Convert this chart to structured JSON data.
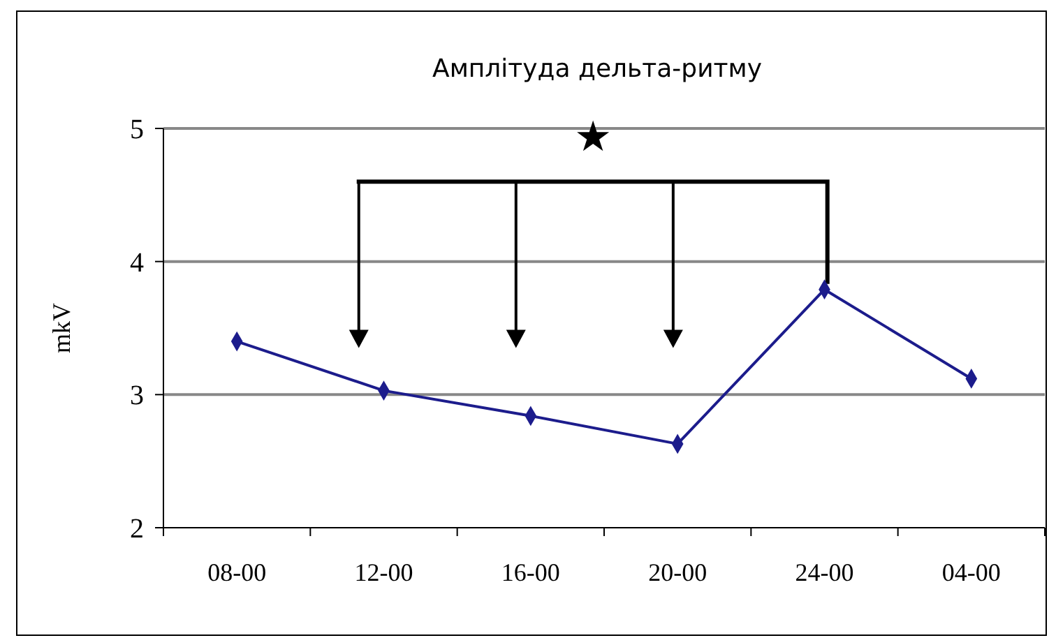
{
  "chart_data": {
    "type": "line",
    "title": "Амплітуда дельта-ритму",
    "ylabel": "mkV",
    "categories": [
      "08-00",
      "12-00",
      "16-00",
      "20-00",
      "24-00",
      "04-00"
    ],
    "series": [
      {
        "color": "#1c1c8c",
        "values": [
          3.4,
          3.03,
          2.84,
          2.63,
          3.79,
          3.12
        ]
      }
    ],
    "ylim": [
      2,
      5
    ],
    "yticks": [
      2,
      3,
      4,
      5
    ],
    "grid": "y",
    "marker": "diamond",
    "line_style": "solid",
    "annotations": [
      "★"
    ]
  }
}
